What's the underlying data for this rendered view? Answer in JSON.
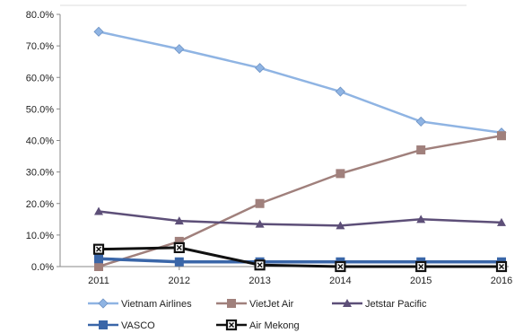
{
  "chart_data": {
    "type": "line",
    "title": "",
    "xlabel": "",
    "ylabel": "",
    "x": [
      "2011",
      "2012",
      "2013",
      "2014",
      "2015",
      "2016"
    ],
    "ylim": [
      0,
      80
    ],
    "yticks": [
      "0.0%",
      "10.0%",
      "20.0%",
      "30.0%",
      "40.0%",
      "50.0%",
      "60.0%",
      "70.0%",
      "80.0%"
    ],
    "grid": false,
    "legend_position": "bottom",
    "series": [
      {
        "name": "Vietnam Airlines",
        "color": "#8fb4e3",
        "marker": "diamond",
        "values": [
          74.5,
          69.0,
          63.0,
          55.5,
          46.0,
          42.5
        ]
      },
      {
        "name": "VietJet Air",
        "color": "#a0807c",
        "marker": "square",
        "values": [
          0.0,
          8.0,
          20.0,
          29.5,
          37.0,
          41.5
        ]
      },
      {
        "name": "Jetstar Pacific",
        "color": "#5d4f78",
        "marker": "triangle",
        "values": [
          17.5,
          14.5,
          13.5,
          13.0,
          15.0,
          14.0
        ]
      },
      {
        "name": "VASCO",
        "color": "#3a66a8",
        "marker": "square",
        "values": [
          2.5,
          1.5,
          1.5,
          1.5,
          1.5,
          1.5
        ]
      },
      {
        "name": "Air Mekong",
        "color": "#111111",
        "marker": "x-square",
        "values": [
          5.5,
          6.0,
          0.5,
          0.0,
          0.0,
          0.0
        ]
      }
    ]
  }
}
